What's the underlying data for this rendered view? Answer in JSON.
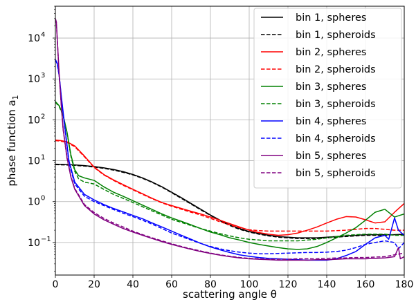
{
  "chart_data": {
    "type": "line",
    "title": "",
    "xlabel": "scattering angle θ",
    "ylabel": "phase function a",
    "ylabel_sub": "1",
    "xlim": [
      0,
      180
    ],
    "ylim": [
      0.016,
      60000
    ],
    "yscale": "log",
    "grid": true,
    "legend_position": "top-right",
    "x_ticks": [
      0,
      20,
      40,
      60,
      80,
      100,
      120,
      140,
      160,
      180
    ],
    "y_ticks": [
      {
        "value": 0.1,
        "base": "10",
        "exp": "−1"
      },
      {
        "value": 1,
        "base": "10",
        "exp": "0"
      },
      {
        "value": 10,
        "base": "10",
        "exp": "1"
      },
      {
        "value": 100,
        "base": "10",
        "exp": "2"
      },
      {
        "value": 1000,
        "base": "10",
        "exp": "3"
      },
      {
        "value": 10000,
        "base": "10",
        "exp": "4"
      }
    ],
    "series": [
      {
        "name": "bin 1, spheres",
        "color": "#000000",
        "dash": "solid",
        "x": [
          0,
          5,
          10,
          15,
          20,
          25,
          30,
          35,
          40,
          45,
          50,
          55,
          60,
          65,
          70,
          75,
          80,
          85,
          90,
          95,
          100,
          105,
          110,
          115,
          120,
          125,
          130,
          135,
          140,
          145,
          150,
          155,
          160,
          165,
          170,
          175,
          180
        ],
        "y": [
          8.2,
          8.1,
          7.9,
          7.6,
          7.2,
          6.7,
          6.1,
          5.4,
          4.6,
          3.8,
          3.0,
          2.3,
          1.7,
          1.25,
          0.9,
          0.65,
          0.47,
          0.35,
          0.27,
          0.22,
          0.185,
          0.165,
          0.15,
          0.14,
          0.135,
          0.13,
          0.13,
          0.13,
          0.135,
          0.14,
          0.145,
          0.15,
          0.155,
          0.155,
          0.155,
          0.155,
          0.16
        ]
      },
      {
        "name": "bin 1, spheroids",
        "color": "#000000",
        "dash": "dashed",
        "x": [
          0,
          5,
          10,
          15,
          20,
          25,
          30,
          35,
          40,
          45,
          50,
          55,
          60,
          65,
          70,
          75,
          80,
          85,
          90,
          95,
          100,
          105,
          110,
          115,
          120,
          125,
          130,
          135,
          140,
          145,
          150,
          155,
          160,
          165,
          170,
          175,
          180
        ],
        "y": [
          8.0,
          7.9,
          7.7,
          7.4,
          7.0,
          6.5,
          5.9,
          5.2,
          4.5,
          3.7,
          2.95,
          2.25,
          1.65,
          1.2,
          0.87,
          0.63,
          0.46,
          0.34,
          0.26,
          0.21,
          0.18,
          0.16,
          0.145,
          0.135,
          0.13,
          0.125,
          0.125,
          0.125,
          0.13,
          0.135,
          0.14,
          0.145,
          0.15,
          0.15,
          0.15,
          0.155,
          0.155
        ]
      },
      {
        "name": "bin 2, spheres",
        "color": "#ff0000",
        "dash": "solid",
        "x": [
          0,
          3,
          6,
          10,
          15,
          20,
          25,
          30,
          35,
          40,
          45,
          50,
          55,
          60,
          65,
          70,
          75,
          80,
          85,
          90,
          95,
          100,
          105,
          110,
          115,
          120,
          125,
          130,
          135,
          140,
          145,
          150,
          155,
          160,
          165,
          170,
          175,
          180
        ],
        "y": [
          32,
          31,
          29,
          23,
          13,
          7,
          4.6,
          3.4,
          2.6,
          2.0,
          1.55,
          1.2,
          0.95,
          0.8,
          0.68,
          0.58,
          0.5,
          0.42,
          0.35,
          0.29,
          0.24,
          0.2,
          0.175,
          0.16,
          0.15,
          0.155,
          0.17,
          0.2,
          0.24,
          0.3,
          0.37,
          0.43,
          0.42,
          0.36,
          0.3,
          0.32,
          0.55,
          0.9
        ]
      },
      {
        "name": "bin 2, spheroids",
        "color": "#ff0000",
        "dash": "dashed",
        "x": [
          0,
          3,
          6,
          10,
          15,
          20,
          25,
          30,
          35,
          40,
          45,
          50,
          55,
          60,
          65,
          70,
          75,
          80,
          85,
          90,
          95,
          100,
          105,
          110,
          115,
          120,
          125,
          130,
          135,
          140,
          145,
          150,
          155,
          160,
          165,
          170,
          175,
          180
        ],
        "y": [
          31,
          30,
          28,
          22,
          12.5,
          6.8,
          4.5,
          3.3,
          2.5,
          1.95,
          1.5,
          1.17,
          0.93,
          0.77,
          0.65,
          0.55,
          0.47,
          0.39,
          0.32,
          0.27,
          0.23,
          0.205,
          0.195,
          0.19,
          0.19,
          0.19,
          0.19,
          0.19,
          0.19,
          0.19,
          0.195,
          0.2,
          0.21,
          0.22,
          0.22,
          0.21,
          0.2,
          0.2
        ]
      },
      {
        "name": "bin 3, spheres",
        "color": "#008000",
        "dash": "solid",
        "x": [
          0,
          2,
          4,
          6,
          8,
          10,
          12,
          15,
          20,
          25,
          30,
          35,
          40,
          45,
          50,
          55,
          60,
          65,
          70,
          75,
          80,
          85,
          90,
          95,
          100,
          105,
          110,
          115,
          120,
          125,
          130,
          135,
          140,
          145,
          150,
          155,
          160,
          165,
          170,
          175,
          180
        ],
        "y": [
          280,
          220,
          130,
          50,
          14,
          6,
          4.3,
          3.8,
          3.3,
          2.3,
          1.7,
          1.35,
          1.05,
          0.82,
          0.64,
          0.5,
          0.4,
          0.33,
          0.27,
          0.22,
          0.18,
          0.155,
          0.13,
          0.115,
          0.1,
          0.09,
          0.082,
          0.075,
          0.07,
          0.068,
          0.07,
          0.08,
          0.1,
          0.13,
          0.17,
          0.23,
          0.35,
          0.55,
          0.65,
          0.42,
          0.5
        ]
      },
      {
        "name": "bin 3, spheroids",
        "color": "#008000",
        "dash": "dashed",
        "x": [
          0,
          2,
          4,
          6,
          8,
          10,
          12,
          15,
          20,
          25,
          30,
          35,
          40,
          45,
          50,
          55,
          60,
          65,
          70,
          75,
          80,
          85,
          90,
          95,
          100,
          105,
          110,
          115,
          120,
          125,
          130,
          135,
          140,
          145,
          150,
          155,
          160,
          165,
          170,
          175,
          180
        ],
        "y": [
          270,
          210,
          125,
          48,
          13,
          5.5,
          3.6,
          3.0,
          2.7,
          2.0,
          1.5,
          1.2,
          0.95,
          0.75,
          0.59,
          0.47,
          0.37,
          0.31,
          0.26,
          0.22,
          0.19,
          0.165,
          0.145,
          0.13,
          0.12,
          0.115,
          0.11,
          0.11,
          0.11,
          0.11,
          0.115,
          0.12,
          0.13,
          0.14,
          0.15,
          0.155,
          0.16,
          0.16,
          0.16,
          0.15,
          0.15
        ]
      },
      {
        "name": "bin 4, spheres",
        "color": "#0000ff",
        "dash": "solid",
        "x": [
          0,
          1,
          2,
          3,
          5,
          7,
          10,
          15,
          20,
          25,
          30,
          35,
          40,
          45,
          50,
          55,
          60,
          65,
          70,
          75,
          80,
          85,
          90,
          95,
          100,
          105,
          110,
          115,
          120,
          125,
          130,
          135,
          140,
          145,
          150,
          155,
          160,
          165,
          170,
          172,
          175,
          177,
          180
        ],
        "y": [
          3000,
          2400,
          1200,
          400,
          60,
          10,
          3.0,
          1.5,
          1.1,
          0.85,
          0.68,
          0.56,
          0.46,
          0.38,
          0.3,
          0.24,
          0.19,
          0.15,
          0.12,
          0.095,
          0.078,
          0.066,
          0.057,
          0.05,
          0.046,
          0.043,
          0.041,
          0.04,
          0.039,
          0.038,
          0.037,
          0.037,
          0.037,
          0.04,
          0.048,
          0.06,
          0.09,
          0.13,
          0.15,
          0.12,
          0.4,
          0.2,
          0.15
        ]
      },
      {
        "name": "bin 4, spheroids",
        "color": "#0000ff",
        "dash": "dashed",
        "x": [
          0,
          1,
          2,
          3,
          5,
          7,
          10,
          15,
          20,
          25,
          30,
          35,
          40,
          45,
          50,
          55,
          60,
          65,
          70,
          75,
          80,
          85,
          90,
          95,
          100,
          105,
          110,
          115,
          120,
          125,
          130,
          135,
          140,
          145,
          150,
          155,
          160,
          165,
          170,
          175,
          177,
          180
        ],
        "y": [
          2900,
          2300,
          1150,
          380,
          55,
          9,
          2.7,
          1.35,
          1.0,
          0.8,
          0.64,
          0.52,
          0.43,
          0.35,
          0.28,
          0.22,
          0.17,
          0.14,
          0.115,
          0.095,
          0.08,
          0.07,
          0.063,
          0.058,
          0.055,
          0.053,
          0.053,
          0.054,
          0.055,
          0.056,
          0.057,
          0.057,
          0.058,
          0.06,
          0.065,
          0.075,
          0.09,
          0.1,
          0.11,
          0.1,
          0.07,
          0.1
        ]
      },
      {
        "name": "bin 5, spheres",
        "color": "#800080",
        "dash": "solid",
        "x": [
          0,
          0.5,
          1,
          2,
          3,
          4,
          6,
          8,
          10,
          15,
          20,
          25,
          30,
          35,
          40,
          45,
          50,
          55,
          60,
          65,
          70,
          75,
          80,
          85,
          90,
          95,
          100,
          105,
          110,
          115,
          120,
          125,
          130,
          135,
          140,
          145,
          150,
          155,
          160,
          165,
          170,
          175,
          177,
          178,
          180
        ],
        "y": [
          30000,
          25000,
          9000,
          1200,
          250,
          60,
          12,
          4,
          2.0,
          0.8,
          0.5,
          0.36,
          0.28,
          0.22,
          0.18,
          0.15,
          0.125,
          0.105,
          0.09,
          0.078,
          0.068,
          0.06,
          0.054,
          0.049,
          0.045,
          0.042,
          0.04,
          0.039,
          0.038,
          0.037,
          0.037,
          0.037,
          0.037,
          0.038,
          0.038,
          0.039,
          0.04,
          0.04,
          0.04,
          0.041,
          0.042,
          0.045,
          0.075,
          0.04,
          0.045
        ]
      },
      {
        "name": "bin 5, spheroids",
        "color": "#800080",
        "dash": "dashed",
        "x": [
          0,
          0.5,
          1,
          2,
          3,
          4,
          6,
          8,
          10,
          15,
          20,
          25,
          30,
          35,
          40,
          45,
          50,
          55,
          60,
          65,
          70,
          75,
          80,
          85,
          90,
          95,
          100,
          105,
          110,
          115,
          120,
          125,
          130,
          135,
          140,
          145,
          150,
          155,
          160,
          165,
          170,
          175,
          180
        ],
        "y": [
          29000,
          24000,
          8800,
          1150,
          240,
          58,
          11.5,
          4.2,
          2.1,
          0.85,
          0.54,
          0.39,
          0.3,
          0.24,
          0.19,
          0.155,
          0.13,
          0.11,
          0.093,
          0.08,
          0.07,
          0.062,
          0.055,
          0.05,
          0.046,
          0.043,
          0.041,
          0.04,
          0.039,
          0.039,
          0.039,
          0.04,
          0.04,
          0.04,
          0.041,
          0.042,
          0.042,
          0.043,
          0.043,
          0.044,
          0.045,
          0.05,
          0.055
        ]
      }
    ]
  }
}
